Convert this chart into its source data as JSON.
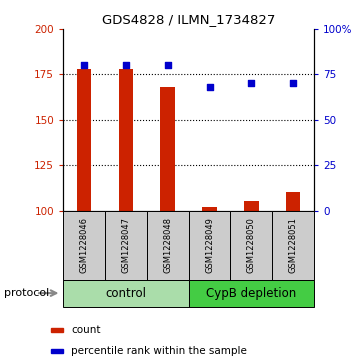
{
  "title": "GDS4828 / ILMN_1734827",
  "samples": [
    "GSM1228046",
    "GSM1228047",
    "GSM1228048",
    "GSM1228049",
    "GSM1228050",
    "GSM1228051"
  ],
  "bar_values": [
    178,
    178,
    168,
    102,
    105,
    110
  ],
  "percentile_values": [
    80,
    80,
    80,
    68,
    70,
    70
  ],
  "ylim_left": [
    100,
    200
  ],
  "ylim_right": [
    0,
    100
  ],
  "yticks_left": [
    100,
    125,
    150,
    175,
    200
  ],
  "yticks_right": [
    0,
    25,
    50,
    75,
    100
  ],
  "ytick_labels_left": [
    "100",
    "125",
    "150",
    "175",
    "200"
  ],
  "ytick_labels_right": [
    "0",
    "25",
    "50",
    "75",
    "100%"
  ],
  "bar_color": "#cc2200",
  "dot_color": "#0000cc",
  "protocol_groups": [
    {
      "label": "control",
      "start": 0,
      "end": 3,
      "color": "#aaddaa"
    },
    {
      "label": "CypB depletion",
      "start": 3,
      "end": 6,
      "color": "#44cc44"
    }
  ],
  "legend_items": [
    {
      "color": "#cc2200",
      "label": "count"
    },
    {
      "color": "#0000cc",
      "label": "percentile rank within the sample"
    }
  ],
  "bar_width": 0.35,
  "sample_box_color": "#cccccc",
  "protocol_label": "protocol",
  "figsize": [
    3.61,
    3.63
  ],
  "dpi": 100
}
